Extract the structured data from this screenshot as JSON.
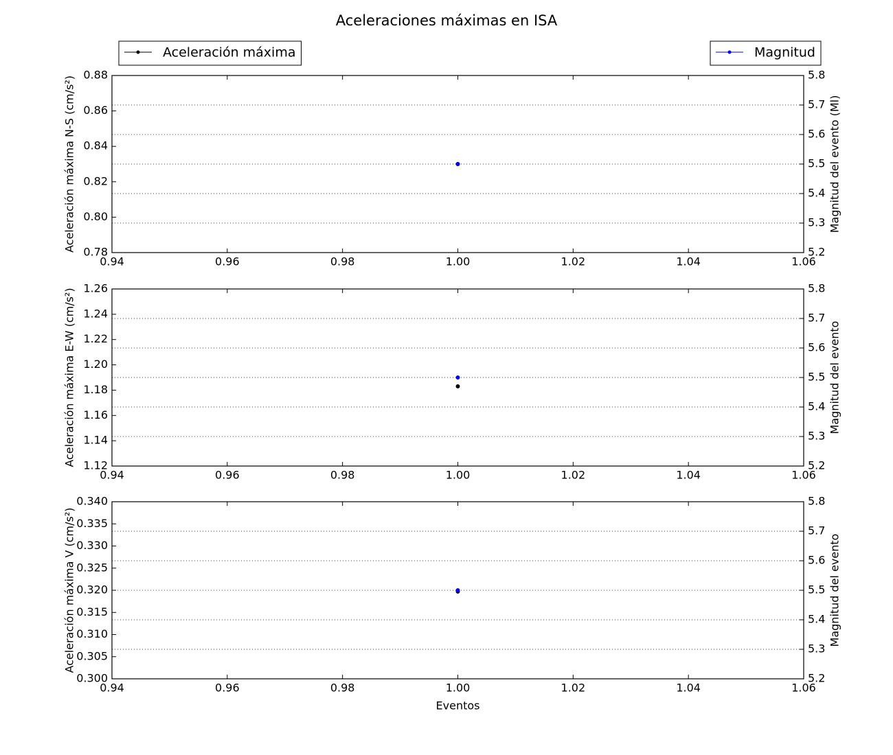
{
  "title": "Aceleraciones máximas en ISA",
  "chart_data": [
    {
      "type": "line",
      "x": [
        1
      ],
      "xlim": [
        0.94,
        1.06
      ],
      "xticks": [
        0.94,
        0.96,
        0.98,
        {
          "value": 1.0,
          "label": "1.00"
        },
        1.02,
        1.04,
        1.06
      ],
      "ylabel": "Aceleración máxima N-S (cm/s²)",
      "y2label": "Magnitud del evento (Ml)",
      "ylim": [
        0.78,
        0.88
      ],
      "yticks": [
        0.78,
        {
          "value": 0.8,
          "label": "0.80"
        },
        0.82,
        0.84,
        0.86,
        0.88
      ],
      "y2lim": [
        5.2,
        5.8
      ],
      "y2ticks": [
        5.2,
        5.3,
        5.4,
        5.5,
        5.6,
        5.7,
        5.8
      ],
      "grid": "y2",
      "legend": "above",
      "series": [
        {
          "name": "Aceleración máxima",
          "color": "#000000",
          "values": [
            0.83
          ]
        },
        {
          "name": "Magnitud",
          "color": "#0000ff",
          "axis": "y2",
          "values": [
            5.5
          ]
        }
      ]
    },
    {
      "type": "line",
      "x": [
        1
      ],
      "xlim": [
        0.94,
        1.06
      ],
      "xticks": [
        0.94,
        0.96,
        0.98,
        {
          "value": 1.0,
          "label": "1.00"
        },
        1.02,
        1.04,
        1.06
      ],
      "ylabel": "Aceleración máxima E-W (cm/s²)",
      "y2label": "Magnitud del evento",
      "ylim": [
        1.12,
        1.26
      ],
      "yticks": [
        1.12,
        1.14,
        1.16,
        1.18,
        {
          "value": 1.2,
          "label": "1.20"
        },
        1.22,
        1.24,
        1.26
      ],
      "y2lim": [
        5.2,
        5.8
      ],
      "y2ticks": [
        5.2,
        5.3,
        5.4,
        5.5,
        5.6,
        5.7,
        5.8
      ],
      "grid": "y2",
      "series": [
        {
          "color": "#000000",
          "values": [
            1.183
          ]
        },
        {
          "color": "#0000ff",
          "axis": "y2",
          "values": [
            5.5
          ]
        }
      ]
    },
    {
      "type": "line",
      "x": [
        1
      ],
      "xlim": [
        0.94,
        1.06
      ],
      "xticks": [
        0.94,
        0.96,
        0.98,
        {
          "value": 1.0,
          "label": "1.00"
        },
        1.02,
        1.04,
        1.06
      ],
      "xlabel": "Eventos",
      "ylabel": "Aceleración máxima V (cm/s²)",
      "y2label": "Magnitud del evento",
      "ylim": [
        0.3,
        0.34
      ],
      "yticks": [
        {
          "value": 0.3,
          "label": "0.300"
        },
        0.305,
        {
          "value": 0.31,
          "label": "0.310"
        },
        0.315,
        {
          "value": 0.32,
          "label": "0.320"
        },
        0.325,
        {
          "value": 0.33,
          "label": "0.330"
        },
        0.335,
        {
          "value": 0.34,
          "label": "0.340"
        }
      ],
      "y2lim": [
        5.2,
        5.8
      ],
      "y2ticks": [
        5.2,
        5.3,
        5.4,
        5.5,
        5.6,
        5.7,
        5.8
      ],
      "grid": "y2",
      "series": [
        {
          "color": "#000000",
          "values": [
            0.3197
          ]
        },
        {
          "color": "#0000ff",
          "axis": "y2",
          "values": [
            5.5
          ]
        }
      ]
    }
  ]
}
